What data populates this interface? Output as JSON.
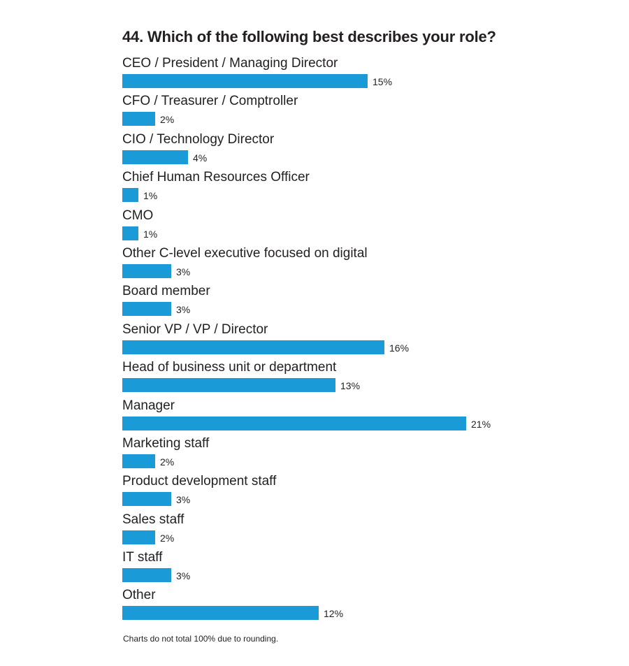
{
  "chart_data": {
    "type": "bar",
    "orientation": "horizontal",
    "title": "44. Which of the following best describes your role?",
    "categories": [
      "CEO / President / Managing Director",
      "CFO / Treasurer / Comptroller",
      "CIO / Technology Director",
      "Chief Human Resources Officer",
      "CMO",
      "Other C-level executive focused on digital",
      "Board member",
      "Senior VP / VP / Director",
      "Head of business unit or department",
      "Manager",
      "Marketing staff",
      "Product development staff",
      "Sales staff",
      "IT staff",
      "Other"
    ],
    "values": [
      15,
      2,
      4,
      1,
      1,
      3,
      3,
      16,
      13,
      21,
      2,
      3,
      2,
      3,
      12
    ],
    "value_labels": [
      "15%",
      "2%",
      "4%",
      "1%",
      "1%",
      "3%",
      "3%",
      "16%",
      "13%",
      "21%",
      "2%",
      "3%",
      "2%",
      "3%",
      "12%"
    ],
    "unit": "%",
    "xlim": [
      0,
      21
    ],
    "grid": false,
    "bar_color": "#1a9ad6",
    "footnote": "Charts do not total 100% due to rounding."
  }
}
